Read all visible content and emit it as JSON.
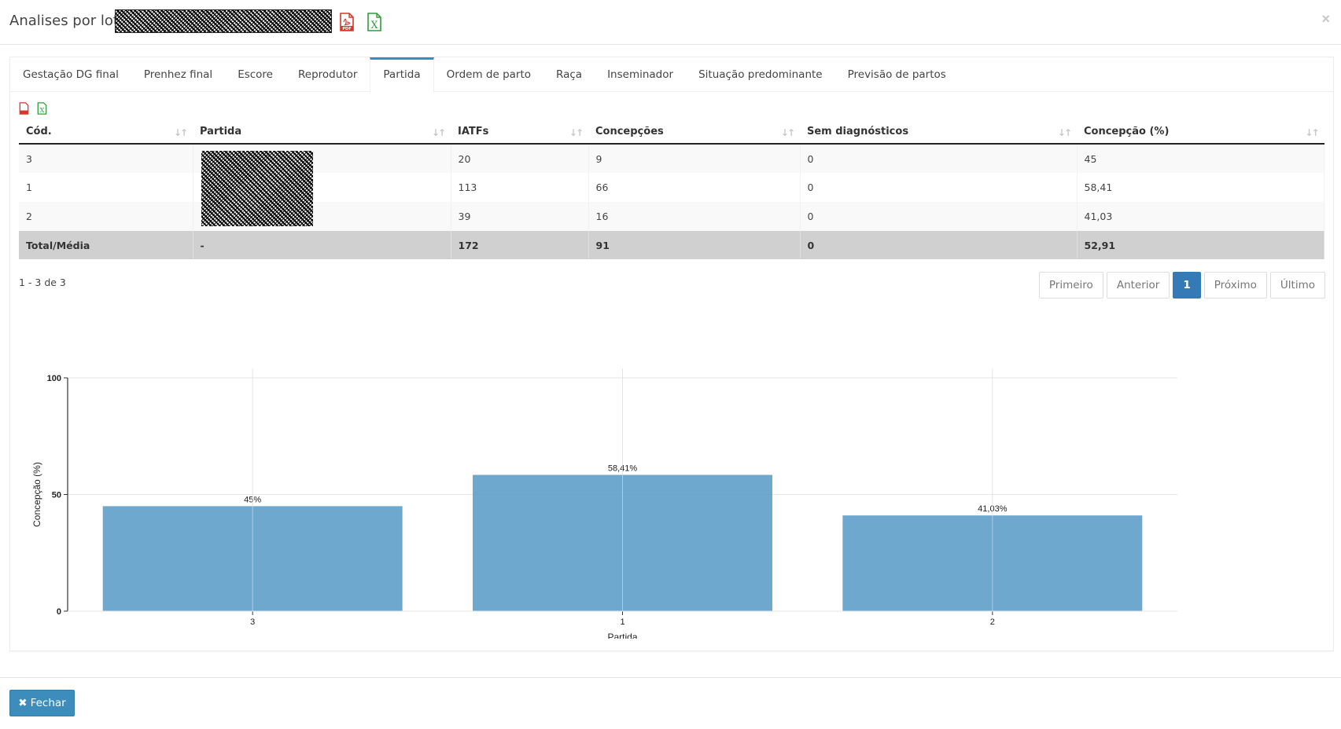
{
  "header": {
    "title": "Analises por lotes",
    "pdf_icon": "pdf-file-icon",
    "excel_icon": "excel-file-icon",
    "close_symbol": "×"
  },
  "tabs": [
    {
      "label": "Gestação DG final",
      "active": false
    },
    {
      "label": "Prenhez final",
      "active": false
    },
    {
      "label": "Escore",
      "active": false
    },
    {
      "label": "Reprodutor",
      "active": false
    },
    {
      "label": "Partida",
      "active": true
    },
    {
      "label": "Ordem de parto",
      "active": false
    },
    {
      "label": "Raça",
      "active": false
    },
    {
      "label": "Inseminador",
      "active": false
    },
    {
      "label": "Situação predominante",
      "active": false
    },
    {
      "label": "Previsão de partos",
      "active": false
    }
  ],
  "table": {
    "columns": [
      "Cód.",
      "Partida",
      "IATFs",
      "Concepções",
      "Sem diagnósticos",
      "Concepção (%)"
    ],
    "rows": [
      {
        "cod": "3",
        "partida": "",
        "iatfs": "20",
        "concepcoes": "9",
        "sem_diag": "0",
        "concepcao_pct": "45"
      },
      {
        "cod": "1",
        "partida": "",
        "iatfs": "113",
        "concepcoes": "66",
        "sem_diag": "0",
        "concepcao_pct": "58,41"
      },
      {
        "cod": "2",
        "partida": "",
        "iatfs": "39",
        "concepcoes": "16",
        "sem_diag": "0",
        "concepcao_pct": "41,03"
      }
    ],
    "total": {
      "label": "Total/Média",
      "partida": "-",
      "iatfs": "172",
      "concepcoes": "91",
      "sem_diag": "0",
      "concepcao_pct": "52,91"
    }
  },
  "count_text": "1 - 3 de 3",
  "pagination": {
    "first": "Primeiro",
    "prev": "Anterior",
    "current": "1",
    "next": "Próximo",
    "last": "Último"
  },
  "chart_data": {
    "type": "bar",
    "categories": [
      "3",
      "1",
      "2"
    ],
    "values": [
      45,
      58.41,
      41.03
    ],
    "value_labels": [
      "45%",
      "58,41%",
      "41,03%"
    ],
    "xlabel": "Partida",
    "ylabel": "Concepção (%)",
    "ylim": [
      0,
      100
    ],
    "yticks": [
      0,
      50,
      100
    ],
    "grid": true,
    "bar_color": "#5b9cc8"
  },
  "footer": {
    "close_label": "Fechar",
    "close_icon": "times-icon"
  }
}
